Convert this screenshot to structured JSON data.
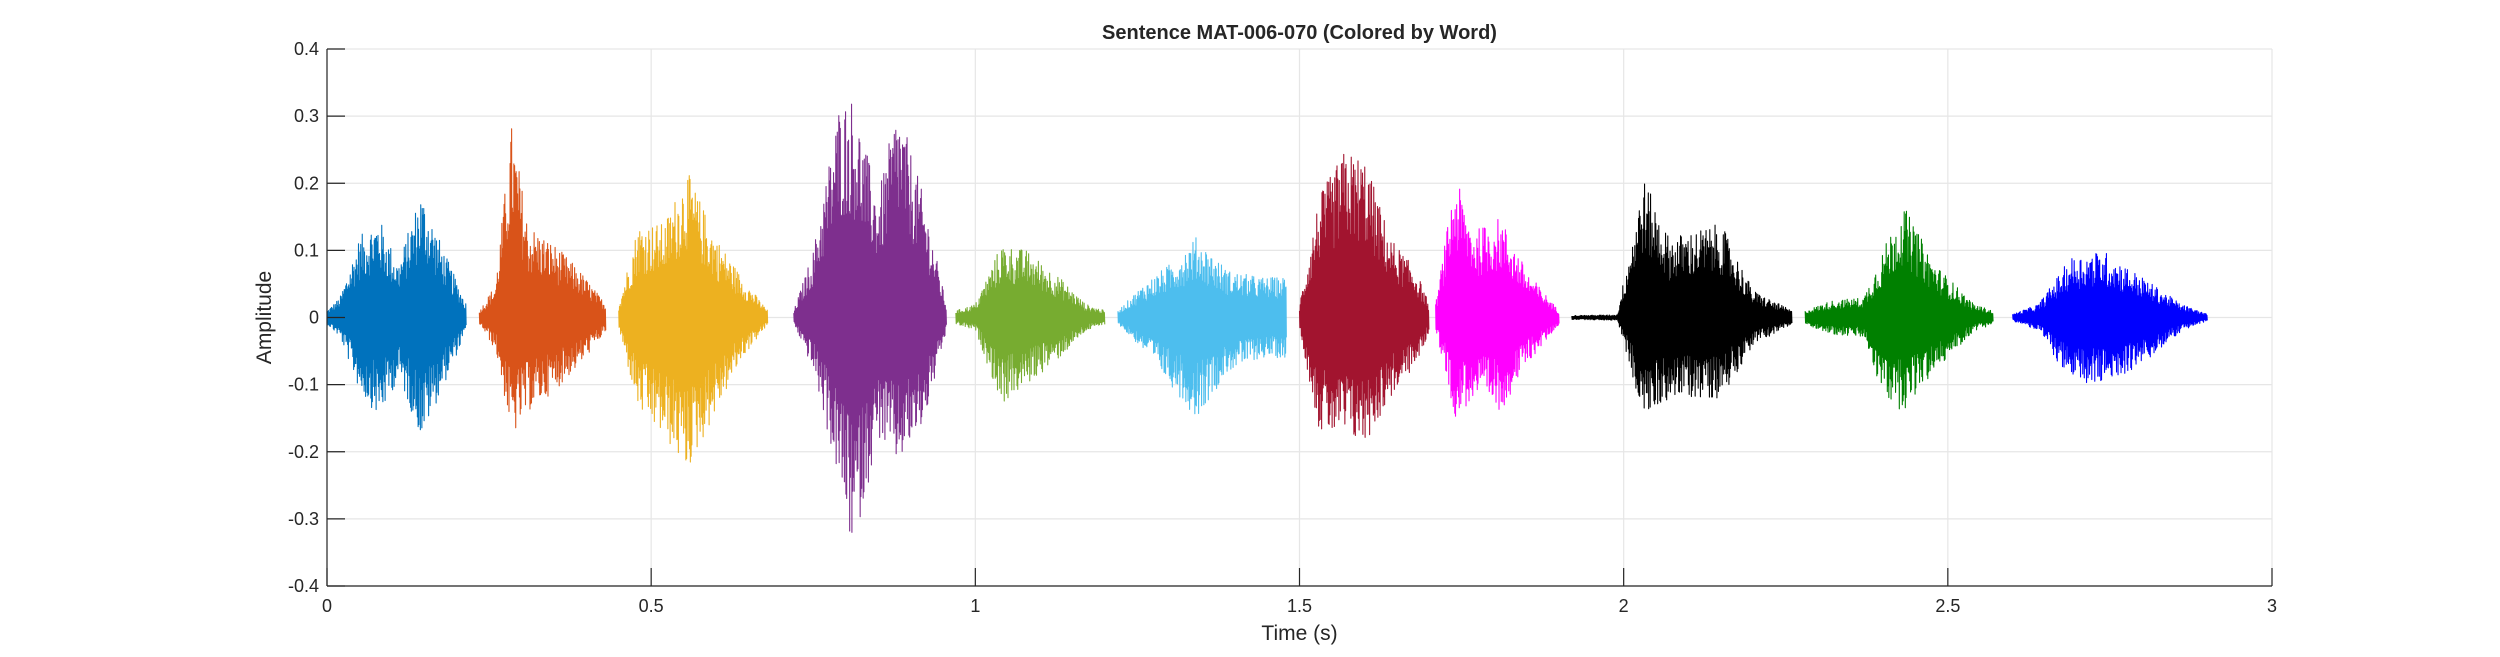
{
  "chart_data": {
    "type": "line",
    "title": "Sentence MAT-006-070 (Colored by Word)",
    "xlabel": "Time (s)",
    "ylabel": "Amplitude",
    "xlim": [
      0,
      3
    ],
    "ylim": [
      -0.4,
      0.4
    ],
    "xticks": [
      0,
      0.5,
      1,
      1.5,
      2,
      2.5,
      3
    ],
    "xtick_labels": [
      "0",
      "0.5",
      "1",
      "1.5",
      "2",
      "2.5",
      "3"
    ],
    "yticks": [
      -0.4,
      -0.3,
      -0.2,
      -0.1,
      0,
      0.1,
      0.2,
      0.3,
      0.4
    ],
    "ytick_labels": [
      "-0.4",
      "-0.3",
      "-0.2",
      "-0.1",
      "0",
      "0.1",
      "0.2",
      "0.3",
      "0.4"
    ],
    "grid": true,
    "legend": "none",
    "series": [
      {
        "color": "#0072BD",
        "t_start": 0.0,
        "t_end": 0.215,
        "envelope": [
          [
            0.0,
            0.01,
            -0.01
          ],
          [
            0.02,
            0.03,
            -0.03
          ],
          [
            0.05,
            0.12,
            -0.11
          ],
          [
            0.08,
            0.15,
            -0.15
          ],
          [
            0.11,
            0.08,
            -0.09
          ],
          [
            0.145,
            0.19,
            -0.18
          ],
          [
            0.18,
            0.1,
            -0.1
          ],
          [
            0.215,
            0.02,
            -0.02
          ]
        ]
      },
      {
        "color": "#D95319",
        "t_start": 0.235,
        "t_end": 0.43,
        "envelope": [
          [
            0.235,
            0.01,
            -0.01
          ],
          [
            0.26,
            0.05,
            -0.05
          ],
          [
            0.285,
            0.29,
            -0.18
          ],
          [
            0.31,
            0.14,
            -0.14
          ],
          [
            0.35,
            0.11,
            -0.11
          ],
          [
            0.39,
            0.07,
            -0.07
          ],
          [
            0.43,
            0.02,
            -0.02
          ]
        ]
      },
      {
        "color": "#EDB120",
        "t_start": 0.45,
        "t_end": 0.68,
        "envelope": [
          [
            0.45,
            0.02,
            -0.02
          ],
          [
            0.48,
            0.14,
            -0.14
          ],
          [
            0.52,
            0.14,
            -0.18
          ],
          [
            0.555,
            0.22,
            -0.23
          ],
          [
            0.6,
            0.12,
            -0.14
          ],
          [
            0.64,
            0.06,
            -0.06
          ],
          [
            0.68,
            0.01,
            -0.01
          ]
        ]
      },
      {
        "color": "#7E2F8E",
        "t_start": 0.72,
        "t_end": 0.955,
        "envelope": [
          [
            0.72,
            0.01,
            -0.01
          ],
          [
            0.75,
            0.1,
            -0.08
          ],
          [
            0.79,
            0.32,
            -0.25
          ],
          [
            0.81,
            0.33,
            -0.35
          ],
          [
            0.85,
            0.18,
            -0.18
          ],
          [
            0.88,
            0.32,
            -0.22
          ],
          [
            0.92,
            0.18,
            -0.16
          ],
          [
            0.955,
            0.02,
            -0.02
          ]
        ]
      },
      {
        "color": "#77AC30",
        "t_start": 0.97,
        "t_end": 1.2,
        "envelope": [
          [
            0.97,
            0.01,
            -0.01
          ],
          [
            1.0,
            0.02,
            -0.02
          ],
          [
            1.04,
            0.11,
            -0.13
          ],
          [
            1.08,
            0.1,
            -0.1
          ],
          [
            1.13,
            0.06,
            -0.06
          ],
          [
            1.17,
            0.02,
            -0.02
          ],
          [
            1.2,
            0.01,
            -0.01
          ]
        ]
      },
      {
        "color": "#4DBEEE",
        "t_start": 1.22,
        "t_end": 1.48,
        "envelope": [
          [
            1.22,
            0.01,
            -0.01
          ],
          [
            1.26,
            0.05,
            -0.05
          ],
          [
            1.3,
            0.08,
            -0.1
          ],
          [
            1.34,
            0.12,
            -0.15
          ],
          [
            1.39,
            0.07,
            -0.08
          ],
          [
            1.44,
            0.06,
            -0.06
          ],
          [
            1.48,
            0.06,
            -0.06
          ]
        ]
      },
      {
        "color": "#A2142F",
        "t_start": 1.5,
        "t_end": 1.7,
        "envelope": [
          [
            1.5,
            0.02,
            -0.02
          ],
          [
            1.53,
            0.18,
            -0.17
          ],
          [
            1.57,
            0.25,
            -0.18
          ],
          [
            1.6,
            0.24,
            -0.19
          ],
          [
            1.64,
            0.12,
            -0.12
          ],
          [
            1.68,
            0.07,
            -0.07
          ],
          [
            1.7,
            0.02,
            -0.02
          ]
        ]
      },
      {
        "color": "#FF00FF",
        "t_start": 1.71,
        "t_end": 1.9,
        "envelope": [
          [
            1.71,
            0.02,
            -0.02
          ],
          [
            1.74,
            0.21,
            -0.15
          ],
          [
            1.77,
            0.13,
            -0.12
          ],
          [
            1.81,
            0.15,
            -0.14
          ],
          [
            1.85,
            0.07,
            -0.07
          ],
          [
            1.9,
            0.01,
            -0.01
          ]
        ]
      },
      {
        "color": "#000000",
        "t_start": 1.92,
        "t_end": 2.26,
        "envelope": [
          [
            1.92,
            0.003,
            -0.003
          ],
          [
            1.99,
            0.004,
            -0.004
          ],
          [
            2.03,
            0.21,
            -0.15
          ],
          [
            2.07,
            0.12,
            -0.12
          ],
          [
            2.15,
            0.14,
            -0.12
          ],
          [
            2.2,
            0.04,
            -0.04
          ],
          [
            2.26,
            0.01,
            -0.01
          ]
        ]
      },
      {
        "color": "#008000",
        "t_start": 2.28,
        "t_end": 2.57,
        "envelope": [
          [
            2.28,
            0.01,
            -0.01
          ],
          [
            2.32,
            0.025,
            -0.025
          ],
          [
            2.37,
            0.03,
            -0.03
          ],
          [
            2.4,
            0.1,
            -0.12
          ],
          [
            2.43,
            0.17,
            -0.14
          ],
          [
            2.48,
            0.08,
            -0.08
          ],
          [
            2.54,
            0.02,
            -0.02
          ],
          [
            2.57,
            0.01,
            -0.01
          ]
        ]
      },
      {
        "color": "#0000FF",
        "t_start": 2.6,
        "t_end": 2.9,
        "envelope": [
          [
            2.6,
            0.005,
            -0.005
          ],
          [
            2.64,
            0.02,
            -0.02
          ],
          [
            2.69,
            0.09,
            -0.1
          ],
          [
            2.74,
            0.1,
            -0.1
          ],
          [
            2.8,
            0.06,
            -0.07
          ],
          [
            2.86,
            0.02,
            -0.02
          ],
          [
            2.9,
            0.005,
            -0.005
          ]
        ]
      }
    ]
  }
}
